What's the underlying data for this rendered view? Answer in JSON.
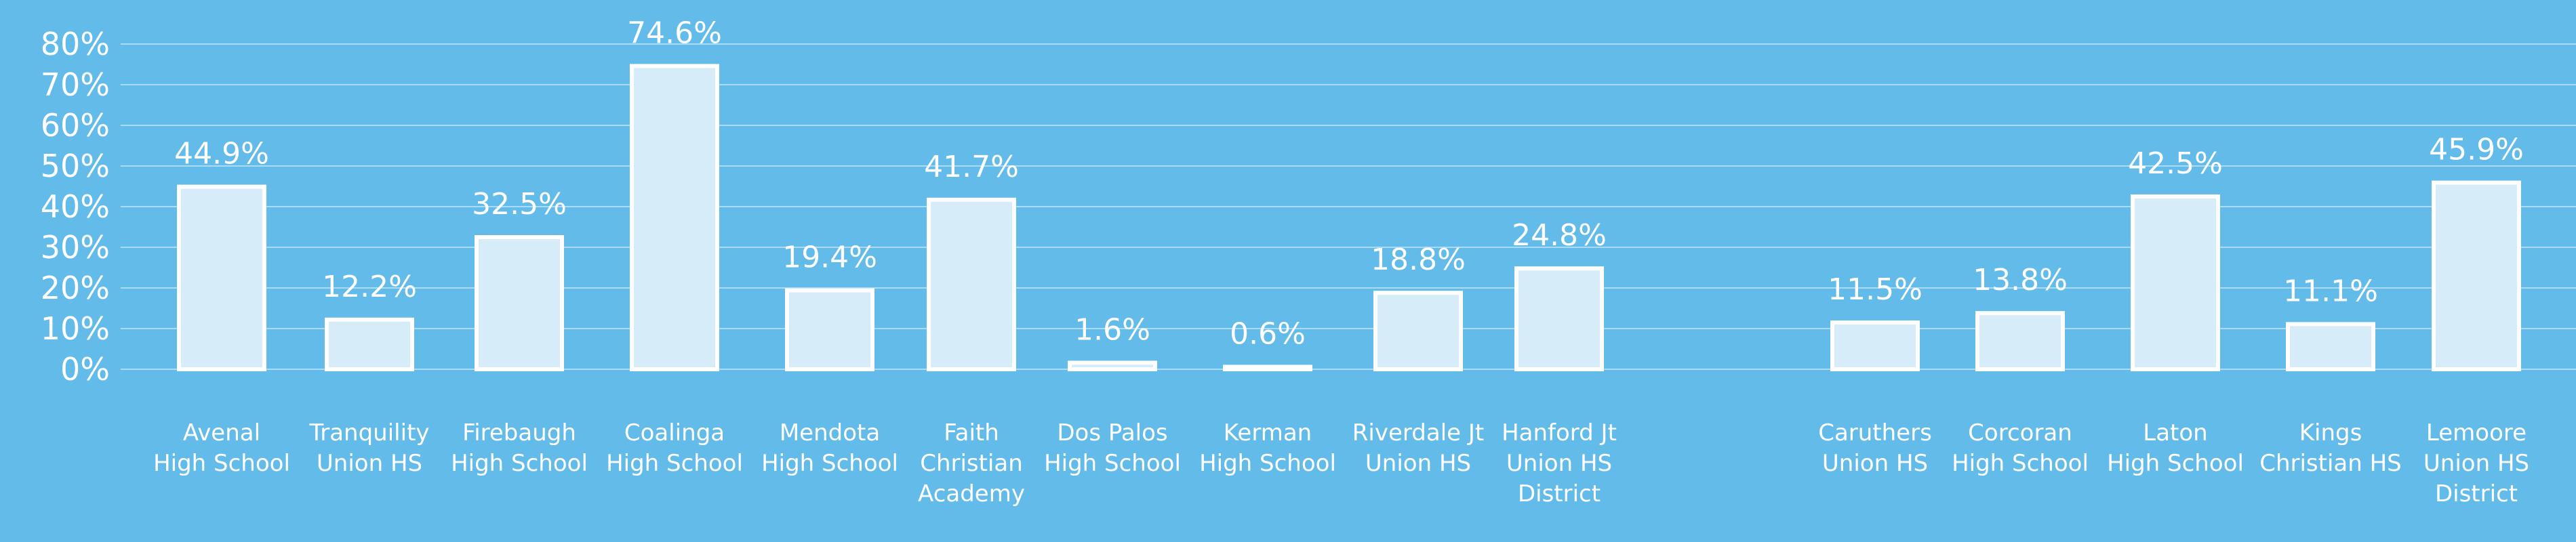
{
  "chart_data": {
    "type": "bar",
    "title": "",
    "xlabel": "",
    "ylabel": "",
    "ylim": [
      0,
      80
    ],
    "ytick_values": [
      0,
      10,
      20,
      30,
      40,
      50,
      60,
      70,
      80
    ],
    "ytick_labels": [
      "0%",
      "10%",
      "20%",
      "30%",
      "40%",
      "50%",
      "60%",
      "70%",
      "80%"
    ],
    "grid": true,
    "categories": [
      [
        "Avenal",
        "High School"
      ],
      [
        "Tranquility",
        "Union HS"
      ],
      [
        "Firebaugh",
        "High School"
      ],
      [
        "Coalinga",
        "High School"
      ],
      [
        "Mendota",
        "High School"
      ],
      [
        "Faith",
        "Christian",
        "Academy"
      ],
      [
        "Dos Palos",
        "High School"
      ],
      [
        "Kerman",
        "High School"
      ],
      [
        "Riverdale Jt",
        "Union HS"
      ],
      [
        "Hanford Jt",
        "Union HS",
        "District"
      ],
      [
        "Caruthers",
        "Union HS"
      ],
      [
        "Corcoran",
        "High School"
      ],
      [
        "Laton",
        "High School"
      ],
      [
        "Kings",
        "Christian HS"
      ],
      [
        "Lemoore",
        "Union HS",
        "District"
      ]
    ],
    "values": [
      44.9,
      12.2,
      32.5,
      74.6,
      19.4,
      41.7,
      1.6,
      0.6,
      18.8,
      24.8,
      11.5,
      13.8,
      42.5,
      11.1,
      45.9
    ],
    "data_labels": [
      "44.9%",
      "12.2%",
      "32.5%",
      "74.6%",
      "19.4%",
      "41.7%",
      "1.6%",
      "0.6%",
      "18.8%",
      "24.8%",
      "11.5%",
      "13.8%",
      "42.5%",
      "11.1%",
      "45.9%"
    ],
    "colors": {
      "background": "#63bbea",
      "bar_fill": "#d6ecf8",
      "bar_stroke": "#ffffff",
      "gridline": "#a9dbf6",
      "text": "#ffffff"
    }
  }
}
